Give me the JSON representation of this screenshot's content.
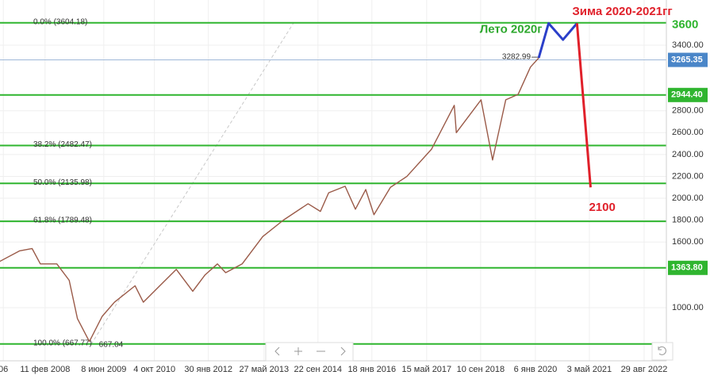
{
  "chart_data": {
    "type": "line",
    "x": [
      2007.0,
      2007.5,
      2007.8,
      2008.0,
      2008.4,
      2008.7,
      2008.9,
      2009.19,
      2009.5,
      2009.8,
      2010.3,
      2010.5,
      2010.9,
      2011.3,
      2011.7,
      2012.0,
      2012.3,
      2012.5,
      2012.9,
      2013.4,
      2013.9,
      2014.5,
      2014.8,
      2015.0,
      2015.4,
      2015.65,
      2015.9,
      2016.1,
      2016.5,
      2016.9,
      2017.5,
      2018.05,
      2018.1,
      2018.7,
      2018.98,
      2019.3,
      2019.6,
      2019.9,
      2020.1
    ],
    "series": [
      {
        "color": "#9a5a48",
        "values": [
          1420,
          1520,
          1540,
          1400,
          1400,
          1250,
          900,
          690,
          920,
          1050,
          1200,
          1050,
          1200,
          1350,
          1150,
          1300,
          1400,
          1320,
          1400,
          1650,
          1800,
          1950,
          1880,
          2050,
          2110,
          1900,
          2080,
          1850,
          2100,
          2200,
          2450,
          2850,
          2600,
          2900,
          2350,
          2900,
          2950,
          3200,
          3282.99
        ]
      }
    ],
    "forecast": [
      {
        "color": "#2b3fc9",
        "x": [
          2020.1,
          2020.34,
          2020.69,
          2021.03
        ],
        "values": [
          3282.99,
          3600,
          3450,
          3600
        ]
      },
      {
        "color": "#e0202a",
        "x": [
          2021.03,
          2021.36
        ],
        "values": [
          3600,
          2100
        ]
      }
    ],
    "annotations": [
      {
        "text": "Лето 2020г",
        "color": "#2ea82e"
      },
      {
        "text": "Зима 2020-2021гг",
        "color": "#e0202a"
      }
    ],
    "forecast_top": 3600,
    "forecast_bottom": 2100,
    "last_price": 3282.99,
    "min_price": 667.04,
    "fib_levels": [
      {
        "value": 3604.18,
        "label": "0.0% (3604.18)"
      },
      {
        "value": 2482.47,
        "label": "38.2% (2482.47)"
      },
      {
        "value": 2135.98,
        "label": "50.0% (2135.98)"
      },
      {
        "value": 1789.48,
        "label": "61.8% (1789.48)"
      },
      {
        "value": 667.77,
        "label": "100.0% (667.77)"
      }
    ],
    "price_levels": [
      {
        "value": 2944.4,
        "label": "2944.40"
      },
      {
        "value": 1363.8,
        "label": "1363.80"
      }
    ],
    "current_price": {
      "value": 3265.35,
      "label": "3265.35"
    },
    "level_color": "#2fb52f",
    "xlim": [
      2007.02,
      2023.2
    ],
    "ylim": [
      514,
      3813
    ],
    "yticks": [
      {
        "value": 1000,
        "label": "1000.00"
      },
      {
        "value": 1600,
        "label": "1600.00"
      },
      {
        "value": 1800,
        "label": "1800.00"
      },
      {
        "value": 2000,
        "label": "2000.00"
      },
      {
        "value": 2200,
        "label": "2200.00"
      },
      {
        "value": 2400,
        "label": "2400.00"
      },
      {
        "value": 2600,
        "label": "2600.00"
      },
      {
        "value": 2800,
        "label": "2800.00"
      },
      {
        "value": 3400,
        "label": "3400.00"
      }
    ],
    "xticks": [
      {
        "value": 2007.1,
        "label": "06"
      },
      {
        "value": 2008.115,
        "label": "11 фев 2008"
      },
      {
        "value": 2009.54,
        "label": "8 июн 2009"
      },
      {
        "value": 2010.77,
        "label": "4 окт 2010"
      },
      {
        "value": 2012.08,
        "label": "30 янв 2012"
      },
      {
        "value": 2013.43,
        "label": "27 май 2013"
      },
      {
        "value": 2014.74,
        "label": "22 сен 2014"
      },
      {
        "value": 2016.05,
        "label": "18 янв 2016"
      },
      {
        "value": 2017.38,
        "label": "15 май 2017"
      },
      {
        "value": 2018.69,
        "label": "10 сен 2018"
      },
      {
        "value": 2020.02,
        "label": "6 янв 2020"
      },
      {
        "value": 2021.33,
        "label": "3 май 2021"
      },
      {
        "value": 2022.66,
        "label": "29 авг 2022"
      }
    ],
    "grid": true
  }
}
